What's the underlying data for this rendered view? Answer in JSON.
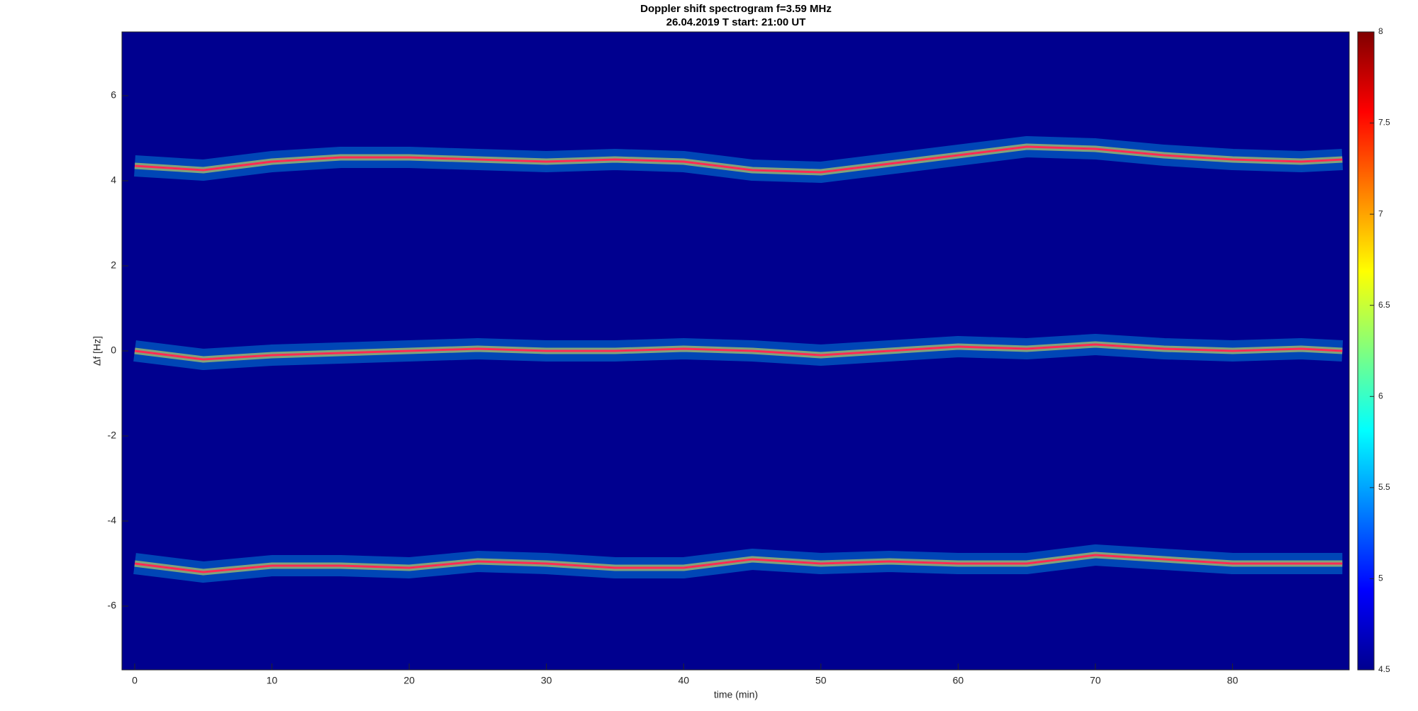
{
  "chart_data": {
    "type": "line",
    "title": "Doppler shift spectrogram f=3.59 MHz",
    "subtitle": "26.04.2019   T start: 21:00 UT",
    "xlabel": "time (min)",
    "ylabel": "Δf [Hz]",
    "x": [
      0,
      5,
      10,
      15,
      20,
      25,
      30,
      35,
      40,
      45,
      50,
      55,
      60,
      65,
      70,
      75,
      80,
      85,
      88
    ],
    "series": [
      {
        "color": "#ff2a55",
        "values": [
          4.35,
          4.25,
          4.45,
          4.55,
          4.55,
          4.5,
          4.45,
          4.5,
          4.45,
          4.25,
          4.2,
          4.4,
          4.6,
          4.8,
          4.75,
          4.6,
          4.5,
          4.45,
          4.5
        ]
      },
      {
        "color": "#ff2a55",
        "values": [
          0,
          -0.2,
          -0.1,
          -0.05,
          0,
          0.05,
          0,
          0,
          0.05,
          0,
          -0.1,
          0,
          0.1,
          0.05,
          0.15,
          0.05,
          0,
          0.05,
          0
        ]
      },
      {
        "color": "#ff2a55",
        "values": [
          -5,
          -5.2,
          -5.05,
          -5.05,
          -5.1,
          -4.95,
          -5,
          -5.1,
          -5.1,
          -4.9,
          -5,
          -4.95,
          -5,
          -5,
          -4.8,
          -4.9,
          -5,
          -5,
          -5
        ]
      }
    ],
    "xlim": [
      -0.93,
      88.5
    ],
    "ylim": [
      -7.5,
      7.5
    ],
    "xticks": [
      0,
      10,
      20,
      30,
      40,
      50,
      60,
      70,
      80
    ],
    "yticks": [
      -6,
      -4,
      -2,
      0,
      2,
      4,
      6
    ],
    "colorbar": {
      "lim": [
        4.5,
        8
      ],
      "ticks": [
        4.5,
        5,
        5.5,
        6,
        6.5,
        7,
        7.5,
        8
      ]
    }
  }
}
